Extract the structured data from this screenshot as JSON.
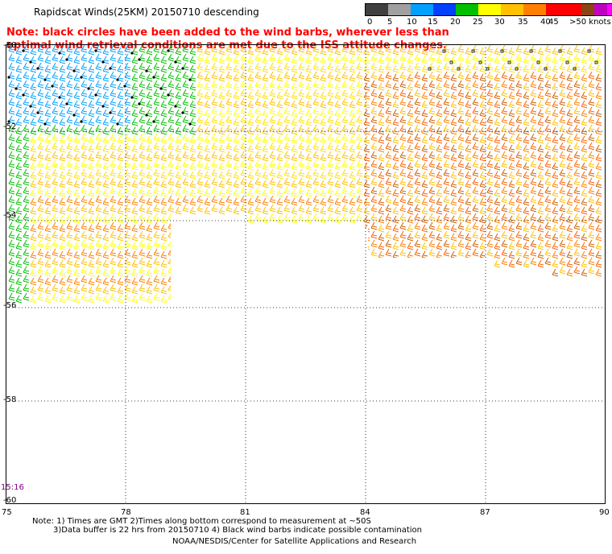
{
  "header": {
    "title": "Rapidscat Winds(25KM) 20150710 descending",
    "note": "Note: black circles have been added to the wind barbs, wherever less than optimal wind retrieval conditions are met due to the ISS attitude changes."
  },
  "legend": {
    "colors": [
      "#404040",
      "#909090",
      "#00a0ff",
      "#0040ff",
      "#00c000",
      "#ffff00",
      "#ffc000",
      "#ff8000",
      "#ff2000",
      "#c00000",
      "#8b4513",
      "#c000c0",
      "#ff00ff",
      "#6000a0",
      "#400080"
    ],
    "labels": [
      "0",
      "5",
      "10",
      "15",
      "20",
      "25",
      "30",
      "35",
      "40",
      "45",
      ">50 knots"
    ]
  },
  "axes": {
    "y_labels": [
      "-50",
      "-52",
      "-54",
      "-56",
      "-58",
      "-60"
    ],
    "x_labels": [
      "75",
      "78",
      "81",
      "84",
      "87",
      "90"
    ]
  },
  "timestamp": "15:16",
  "footer": {
    "line1": "Note: 1) Times are GMT 2)Times along bottom correspond to measurement at ~50S",
    "line2": "3)Data buffer is 22 hrs from 20150710 4) Black wind barbs indicate possible contamination",
    "credit": "NOAA/NESDIS/Center for Satellite Applications and Research"
  }
}
